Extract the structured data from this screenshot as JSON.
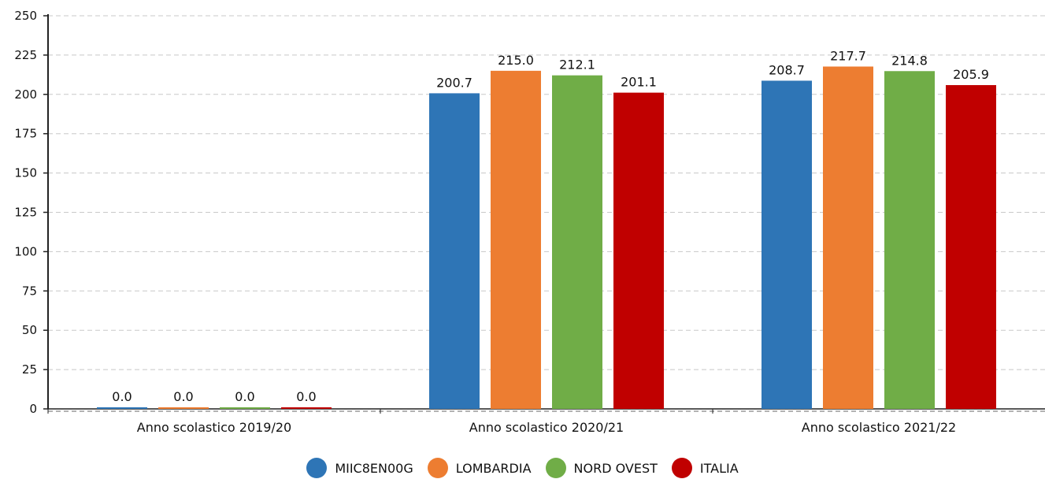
{
  "chart_data": {
    "type": "bar",
    "categories": [
      "Anno scolastico 2019/20",
      "Anno scolastico 2020/21",
      "Anno scolastico 2021/22"
    ],
    "series": [
      {
        "name": "MIIC8EN00G",
        "color": "#2e75b6",
        "values": [
          0.0,
          200.7,
          208.7
        ],
        "labels": [
          "0.0",
          "200.7",
          "208.7"
        ]
      },
      {
        "name": "LOMBARDIA",
        "color": "#ed7d31",
        "values": [
          0.0,
          215.0,
          217.7
        ],
        "labels": [
          "0.0",
          "215.0",
          "217.7"
        ]
      },
      {
        "name": "NORD OVEST",
        "color": "#70ad47",
        "values": [
          0.0,
          212.1,
          214.8
        ],
        "labels": [
          "0.0",
          "212.1",
          "214.8"
        ]
      },
      {
        "name": "ITALIA",
        "color": "#c00000",
        "values": [
          0.0,
          201.1,
          205.9
        ],
        "labels": [
          "0.0",
          "201.1",
          "205.9"
        ]
      }
    ],
    "yticks": [
      "0",
      "25",
      "50",
      "75",
      "100",
      "125",
      "150",
      "175",
      "200",
      "225",
      "250"
    ],
    "ylim": [
      0,
      250
    ],
    "grid": true,
    "legend_position": "bottom",
    "xlabel": "",
    "ylabel": ""
  }
}
